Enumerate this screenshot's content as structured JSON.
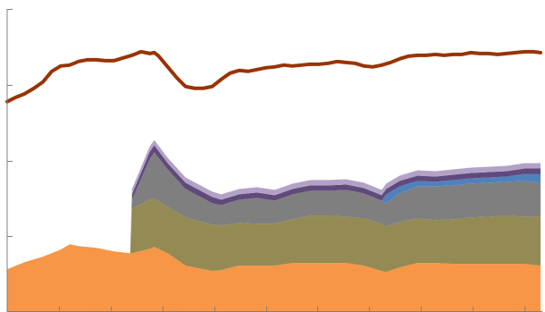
{
  "chart_data": {
    "type": "area",
    "title": "",
    "xlabel": "",
    "ylabel": "",
    "grid": false,
    "legend": "none",
    "x_range": [
      0,
      600
    ],
    "ylim": [
      0,
      340
    ],
    "yticks": [
      0,
      85,
      170,
      255,
      340
    ],
    "xticks": [
      58,
      116,
      174,
      232,
      290,
      348,
      406,
      464,
      522,
      580
    ],
    "x": [
      0,
      20,
      40,
      60,
      70,
      80,
      100,
      120,
      138,
      140,
      160,
      165,
      180,
      200,
      230,
      240,
      260,
      280,
      300,
      320,
      340,
      360,
      380,
      400,
      420,
      425,
      440,
      460,
      480,
      500,
      520,
      540,
      560,
      580,
      598
    ],
    "stacked_series": [
      {
        "color": "#f79646",
        "values": [
          48,
          56,
          62,
          70,
          76,
          74,
          72,
          68,
          66,
          66,
          71,
          73,
          66,
          52,
          46,
          47,
          52,
          52,
          52,
          55,
          55,
          55,
          55,
          52,
          46,
          45,
          50,
          55,
          55,
          54,
          54,
          54,
          54,
          54,
          52
        ]
      },
      {
        "color": "#948a54",
        "values": [
          0,
          0,
          0,
          0,
          0,
          0,
          0,
          0,
          0,
          50,
          55,
          54,
          52,
          54,
          52,
          50,
          48,
          47,
          47,
          49,
          53,
          53,
          52,
          53,
          53,
          51,
          51,
          50,
          48,
          50,
          52,
          53,
          54,
          53,
          55
        ]
      },
      {
        "color": "#7f7f7f",
        "values": [
          0,
          0,
          0,
          0,
          0,
          0,
          0,
          0,
          0,
          10,
          46,
          52,
          42,
          32,
          24,
          23,
          26,
          29,
          26,
          28,
          28,
          28,
          30,
          28,
          26,
          26,
          32,
          36,
          38,
          38,
          38,
          38,
          38,
          40,
          38
        ]
      },
      {
        "color": "#4f81bd",
        "values": [
          0,
          0,
          0,
          0,
          0,
          0,
          0,
          0,
          0,
          0,
          0,
          0,
          0,
          0,
          0,
          0,
          0,
          0,
          0,
          0,
          0,
          0,
          0,
          0,
          0,
          10,
          8,
          6,
          5,
          6,
          6,
          6,
          6,
          8,
          10
        ]
      },
      {
        "color": "#604a7b",
        "values": [
          0,
          0,
          0,
          0,
          0,
          0,
          0,
          0,
          0,
          6,
          8,
          8,
          7,
          7,
          7,
          6,
          6,
          6,
          6,
          6,
          6,
          6,
          6,
          6,
          6,
          6,
          6,
          6,
          6,
          6,
          6,
          6,
          6,
          6,
          6
        ]
      },
      {
        "color": "#b3a2c7",
        "values": [
          0,
          0,
          0,
          0,
          0,
          0,
          0,
          0,
          0,
          6,
          6,
          6,
          6,
          6,
          6,
          6,
          6,
          6,
          6,
          6,
          6,
          6,
          6,
          6,
          6,
          6,
          6,
          6,
          6,
          6,
          6,
          6,
          6,
          6,
          6
        ]
      }
    ],
    "line_series": {
      "color": "#993300",
      "x": [
        0,
        10,
        20,
        30,
        40,
        50,
        60,
        70,
        80,
        90,
        100,
        110,
        120,
        130,
        140,
        150,
        160,
        165,
        170,
        180,
        190,
        200,
        210,
        220,
        230,
        240,
        250,
        260,
        270,
        280,
        290,
        300,
        310,
        320,
        330,
        340,
        350,
        360,
        370,
        380,
        390,
        400,
        410,
        420,
        430,
        440,
        450,
        460,
        470,
        480,
        490,
        500,
        510,
        520,
        530,
        540,
        550,
        560,
        570,
        580,
        590,
        598
      ],
      "values": [
        236,
        241,
        245,
        251,
        258,
        270,
        276,
        277,
        281,
        283,
        283,
        282,
        282,
        285,
        288,
        292,
        290,
        291,
        287,
        275,
        263,
        253,
        251,
        251,
        253,
        261,
        268,
        271,
        270,
        272,
        274,
        275,
        277,
        276,
        277,
        278,
        278,
        279,
        281,
        280,
        279,
        276,
        275,
        277,
        280,
        284,
        287,
        288,
        288,
        289,
        288,
        289,
        289,
        291,
        290,
        290,
        289,
        290,
        291,
        292,
        292,
        291
      ]
    }
  }
}
